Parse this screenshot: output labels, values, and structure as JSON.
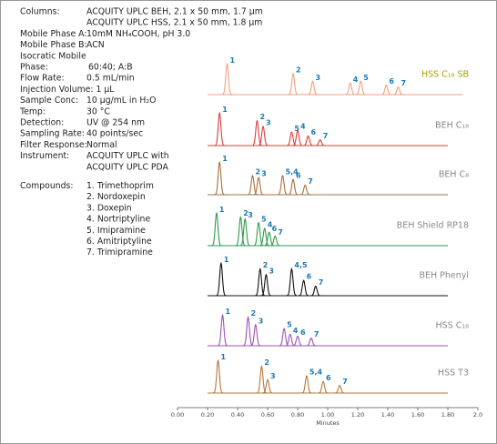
{
  "conditions": [
    {
      "label": "Columns:",
      "value": "ACQUITY UPLC BEH, 2.1 x 50 mm, 1.7 µm"
    },
    {
      "value": "ACQUITY UPLC HSS, 2.1 x 50 mm, 1.8 µm"
    },
    {
      "label": "Mobile Phase A:",
      "value": "10mM NH₄COOH, pH 3.0"
    },
    {
      "label": "Mobile Phase B:",
      "value": "ACN"
    },
    {
      "label": "Isocratic Mobile"
    },
    {
      "label": "Phase:",
      "value": "60:40; A:B"
    },
    {
      "label": "Flow Rate:",
      "value": "0.5 mL/min"
    },
    {
      "label": "Injection Volume: 1 µL"
    },
    {
      "label": "Sample Conc:",
      "value": "10 µg/mL in H₂O"
    },
    {
      "label": "Temp:",
      "value": "30 °C"
    },
    {
      "label": "Detection:",
      "value": "UV @ 254 nm"
    },
    {
      "label": "Sampling Rate:",
      "value": "40 points/sec"
    },
    {
      "label": "Filter Response:",
      "value": "Normal"
    },
    {
      "label": "Instrument:",
      "value": "ACQUITY UPLC with"
    },
    {
      "value": "ACQUITY UPLC PDA"
    }
  ],
  "compounds": {
    "label": "Compounds:",
    "items": [
      "1. Trimethoprim",
      "2. Nordoxepin",
      "3. Doxepin",
      "4. Nortriptyline",
      "5. Imipramine",
      "6. Amitriptyline",
      "7. Trimipramine"
    ]
  },
  "chart_data": {
    "type": "chromatogram",
    "x_label": "Minutes",
    "xlim": [
      0,
      2.0
    ],
    "xticks": [
      {
        "value": 0,
        "label": "0.00"
      },
      {
        "value": 0.2,
        "label": "0.20"
      },
      {
        "value": 0.4,
        "label": "0.40"
      },
      {
        "value": 0.6,
        "label": "0.60"
      },
      {
        "value": 0.8,
        "label": "0.80"
      },
      {
        "value": 1.0,
        "label": "1.00"
      },
      {
        "value": 1.2,
        "label": "1.20"
      },
      {
        "value": 1.4,
        "label": "1.40"
      },
      {
        "value": 1.6,
        "label": "1.60"
      },
      {
        "value": 1.8,
        "label": "1.80"
      },
      {
        "value": 2.0,
        "label": "2.0"
      }
    ],
    "series": [
      {
        "name": "HSS C₁₈ SB",
        "color": "#f2a07c",
        "name_color": "#a8a000",
        "peaks": [
          {
            "label": "1",
            "time": 0.33,
            "height": 0.8
          },
          {
            "label": "2",
            "time": 0.77,
            "height": 0.55
          },
          {
            "label": "3",
            "time": 0.9,
            "height": 0.35
          },
          {
            "label": "4",
            "time": 1.15,
            "height": 0.3
          },
          {
            "label": "5",
            "time": 1.22,
            "height": 0.35
          },
          {
            "label": "6",
            "time": 1.39,
            "height": 0.25
          },
          {
            "label": "7",
            "time": 1.47,
            "height": 0.2
          }
        ]
      },
      {
        "name": "BEH C₁₈",
        "color": "#e03a3a",
        "name_color": "#888888",
        "peaks": [
          {
            "label": "1",
            "time": 0.28,
            "height": 0.85
          },
          {
            "label": "2",
            "time": 0.53,
            "height": 0.65
          },
          {
            "label": "3",
            "time": 0.57,
            "height": 0.5
          },
          {
            "label": "5",
            "time": 0.76,
            "height": 0.35
          },
          {
            "label": "4",
            "time": 0.8,
            "height": 0.4
          },
          {
            "label": "6",
            "time": 0.87,
            "height": 0.25
          },
          {
            "label": "7",
            "time": 0.95,
            "height": 0.15
          }
        ]
      },
      {
        "name": "BEH C₈",
        "color": "#a5703c",
        "name_color": "#888888",
        "peaks": [
          {
            "label": "1",
            "time": 0.28,
            "height": 0.85
          },
          {
            "label": "2",
            "time": 0.5,
            "height": 0.5
          },
          {
            "label": "3",
            "time": 0.54,
            "height": 0.45
          },
          {
            "label": "5,4",
            "time": 0.7,
            "height": 0.5
          },
          {
            "label": "6",
            "time": 0.77,
            "height": 0.4
          },
          {
            "label": "7",
            "time": 0.85,
            "height": 0.25
          }
        ]
      },
      {
        "name": "BEH Shield RP18",
        "color": "#2e9a4e",
        "name_color": "#888888",
        "peaks": [
          {
            "label": "1",
            "time": 0.26,
            "height": 0.85
          },
          {
            "label": "2",
            "time": 0.42,
            "height": 0.75
          },
          {
            "label": "3",
            "time": 0.45,
            "height": 0.7
          },
          {
            "label": "5",
            "time": 0.54,
            "height": 0.6
          },
          {
            "label": "4",
            "time": 0.58,
            "height": 0.45
          },
          {
            "label": "6",
            "time": 0.61,
            "height": 0.35
          },
          {
            "label": "7",
            "time": 0.65,
            "height": 0.25
          }
        ]
      },
      {
        "name": "BEH Phenyl",
        "color": "#111111",
        "name_color": "#888888",
        "peaks": [
          {
            "label": "1",
            "time": 0.29,
            "height": 0.85
          },
          {
            "label": "2",
            "time": 0.55,
            "height": 0.7
          },
          {
            "label": "3",
            "time": 0.59,
            "height": 0.55
          },
          {
            "label": "4,5",
            "time": 0.76,
            "height": 0.7
          },
          {
            "label": "6",
            "time": 0.84,
            "height": 0.4
          },
          {
            "label": "7",
            "time": 0.92,
            "height": 0.25
          }
        ]
      },
      {
        "name": "HSS C₁₈",
        "color": "#9c52b4",
        "name_color": "#888888",
        "peaks": [
          {
            "label": "1",
            "time": 0.3,
            "height": 0.8
          },
          {
            "label": "2",
            "time": 0.47,
            "height": 0.75
          },
          {
            "label": "3",
            "time": 0.52,
            "height": 0.55
          },
          {
            "label": "5",
            "time": 0.71,
            "height": 0.45
          },
          {
            "label": "4",
            "time": 0.75,
            "height": 0.3
          },
          {
            "label": "6",
            "time": 0.8,
            "height": 0.25
          },
          {
            "label": "7",
            "time": 0.89,
            "height": 0.2
          }
        ]
      },
      {
        "name": "HSS T3",
        "color": "#b5773a",
        "name_color": "#888888",
        "peaks": [
          {
            "label": "1",
            "time": 0.27,
            "height": 0.85
          },
          {
            "label": "2",
            "time": 0.56,
            "height": 0.7
          },
          {
            "label": "3",
            "time": 0.6,
            "height": 0.35
          },
          {
            "label": "5,4",
            "time": 0.86,
            "height": 0.45
          },
          {
            "label": "6",
            "time": 0.97,
            "height": 0.3
          },
          {
            "label": "7",
            "time": 1.08,
            "height": 0.2
          }
        ]
      }
    ]
  }
}
